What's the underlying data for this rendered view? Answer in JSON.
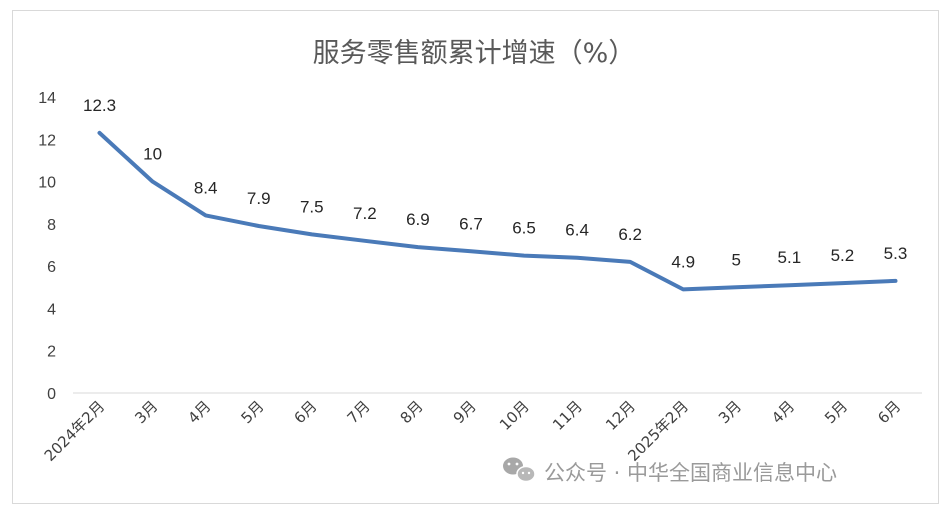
{
  "chart_data": {
    "type": "line",
    "title": "服务零售额累计增速（%）",
    "categories": [
      "2024年2月",
      "3月",
      "4月",
      "5月",
      "6月",
      "7月",
      "8月",
      "9月",
      "10月",
      "11月",
      "12月",
      "2025年2月",
      "3月",
      "4月",
      "5月",
      "6月"
    ],
    "series": [
      {
        "values": [
          12.3,
          10,
          8.4,
          7.9,
          7.5,
          7.2,
          6.9,
          6.7,
          6.5,
          6.4,
          6.2,
          4.9,
          5,
          5.1,
          5.2,
          5.3
        ]
      }
    ],
    "data_labels": [
      "12.3",
      "10",
      "8.4",
      "7.9",
      "7.5",
      "7.2",
      "6.9",
      "6.7",
      "6.5",
      "6.4",
      "6.2",
      "4.9",
      "5",
      "5.1",
      "5.2",
      "5.3"
    ],
    "y_ticks": [
      "0",
      "2",
      "4",
      "6",
      "8",
      "10",
      "12",
      "14"
    ],
    "ylim": [
      0,
      14
    ],
    "grid": false,
    "legend": "none",
    "line_color": "#4a7ab8"
  },
  "watermark": {
    "icon": "wechat-icon",
    "text": "公众号 · 中华全国商业信息中心"
  }
}
